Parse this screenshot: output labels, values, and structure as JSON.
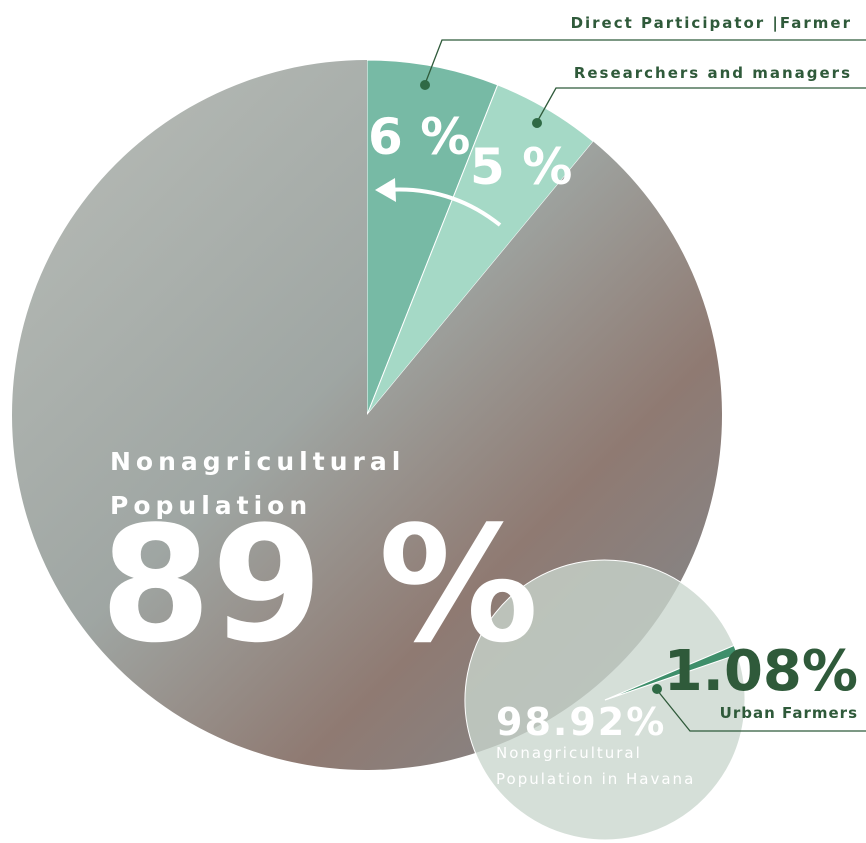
{
  "chart_data": [
    {
      "type": "pie",
      "categories": [
        "Direct Participator |Farmer",
        "Researchers and managers",
        "Nonagricultural Population"
      ],
      "values": [
        6,
        5,
        89
      ],
      "value_labels": [
        "6 %",
        "5 %",
        "89 %"
      ],
      "colors": [
        "#5fae95",
        "#8fcfb8",
        "#a7aca7"
      ]
    },
    {
      "type": "pie",
      "categories": [
        "Nonagricultural Population in Havana",
        "Urban Farmers"
      ],
      "values": [
        98.92,
        1.08
      ],
      "value_labels": [
        "98.92%",
        "1.08%"
      ],
      "colors": [
        "#c9d6cd",
        "#3f8f6b"
      ]
    }
  ]
}
